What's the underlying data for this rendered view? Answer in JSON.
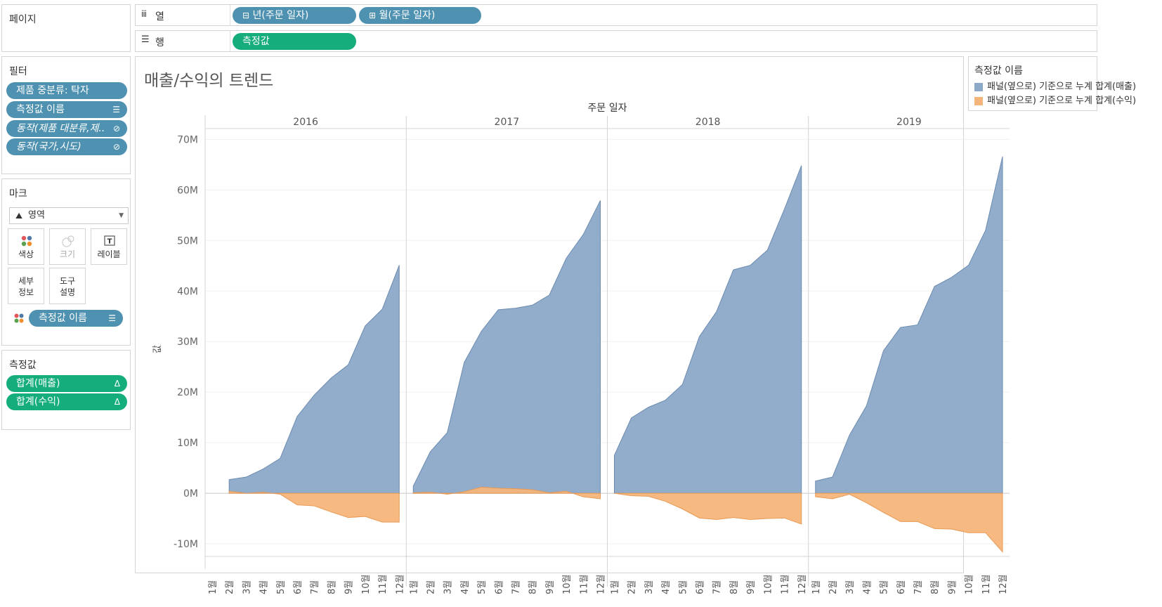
{
  "pages_panel": {
    "title": "페이지"
  },
  "columns_shelf": {
    "label": "열",
    "pills": [
      "년(주문 일자)",
      "월(주문 일자)"
    ],
    "pill_icons": [
      "⊟",
      "⊞"
    ]
  },
  "rows_shelf": {
    "label": "행",
    "pills": [
      "측정값"
    ]
  },
  "filters": {
    "title": "필터",
    "items": [
      "제품 중분류: 탁자",
      "측정값 이름",
      "동작(제품 대분류,제..",
      "동작(국가,시도)"
    ]
  },
  "marks": {
    "title": "마크",
    "type": "영역",
    "buttons": {
      "color": "색상",
      "size": "크기",
      "label": "레이블",
      "detail": [
        "세부",
        "정보"
      ],
      "tooltip": [
        "도구",
        "설명"
      ]
    },
    "color_pill": "측정값 이름"
  },
  "measures": {
    "title": "측정값",
    "items": [
      "합계(매출)",
      "합계(수익)"
    ]
  },
  "legend": {
    "title": "측정값 이름",
    "items": [
      {
        "label": "패널(옆으로) 기준으로 누계 합계(매출)",
        "color": "#8ca9c8"
      },
      {
        "label": "패널(옆으로) 기준으로 누계 합계(수익)",
        "color": "#f5b57a"
      }
    ]
  },
  "chart_data": {
    "type": "area",
    "title": "매출/수익의 트렌드",
    "column_header": "주문 일자",
    "ylabel": "값",
    "years": [
      "2016",
      "2017",
      "2018",
      "2019"
    ],
    "x": [
      "1월",
      "2월",
      "3월",
      "4월",
      "5월",
      "6월",
      "7월",
      "8월",
      "9월",
      "10월",
      "11월",
      "12월"
    ],
    "ylim": [
      -15,
      72
    ],
    "yticks": [
      70,
      60,
      50,
      40,
      30,
      20,
      10,
      0,
      -10
    ],
    "ytick_labels": [
      "70M",
      "60M",
      "50M",
      "40M",
      "30M",
      "20M",
      "10M",
      "0M",
      "-10M"
    ],
    "units": "M",
    "grid": true,
    "series": [
      {
        "name": "패널(옆으로) 기준으로 누계 합계(매출)",
        "color": "#8ca9c8",
        "values": [
          [
            null,
            2.7,
            3.2,
            4.8,
            6.9,
            15.2,
            19.4,
            22.8,
            25.4,
            33.1,
            36.4,
            45.1
          ],
          [
            1.4,
            8.2,
            12.0,
            25.9,
            32.0,
            36.3,
            36.6,
            37.2,
            39.2,
            46.5,
            51.2,
            57.9
          ],
          [
            7.5,
            14.9,
            17.0,
            18.4,
            21.5,
            31.0,
            35.9,
            44.2,
            45.1,
            48.1,
            56.2,
            64.8
          ],
          [
            2.4,
            3.2,
            11.5,
            17.3,
            28.2,
            32.8,
            33.3,
            40.9,
            42.7,
            45.1,
            52.0,
            66.6
          ]
        ]
      },
      {
        "name": "패널(옆으로) 기준으로 누계 합계(수익)",
        "color": "#f5b57a",
        "values": [
          [
            null,
            0.4,
            0.0,
            0.2,
            -0.2,
            -2.3,
            -2.5,
            -3.7,
            -4.8,
            -4.6,
            -5.7,
            -5.7
          ],
          [
            0.1,
            0.2,
            -0.2,
            0.3,
            1.2,
            1.0,
            0.9,
            0.7,
            0.1,
            0.4,
            -0.7,
            -1.1
          ],
          [
            0.0,
            -0.5,
            -0.6,
            -1.6,
            -3.1,
            -4.9,
            -5.2,
            -4.8,
            -5.2,
            -5.0,
            -4.9,
            -6.1
          ],
          [
            -0.7,
            -1.1,
            -0.2,
            -1.9,
            -3.8,
            -5.6,
            -5.6,
            -7.0,
            -7.1,
            -7.8,
            -7.8,
            -11.6
          ]
        ]
      }
    ]
  }
}
